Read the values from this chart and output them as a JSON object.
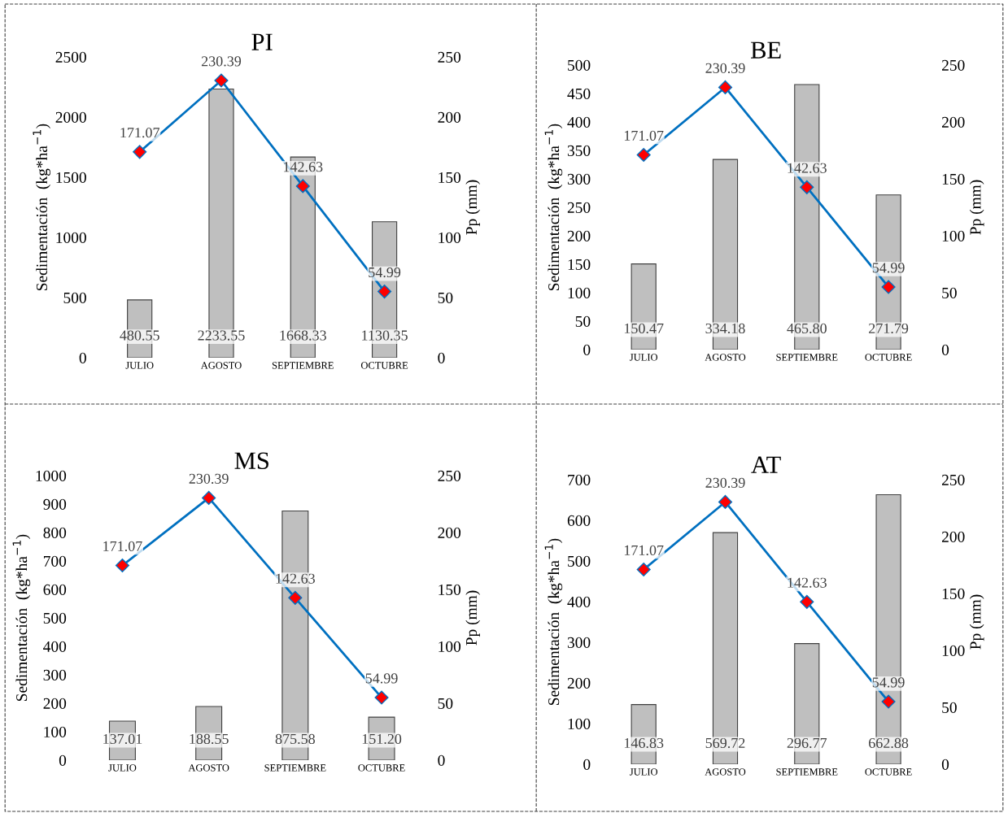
{
  "chart_data": [
    {
      "type": "bar",
      "title": "PI",
      "categories": [
        "JULIO",
        "AGOSTO",
        "SEPTIEMBRE",
        "OCTUBRE"
      ],
      "ylabel": "Sedimentación  (kg*ha$^{−1}$)",
      "y2label": "Pp (mm)",
      "ylim": [
        0,
        2500
      ],
      "yticks": [
        0,
        500,
        1000,
        1500,
        2000,
        2500
      ],
      "y2lim": [
        0,
        250
      ],
      "y2ticks": [
        0,
        50,
        100,
        150,
        200,
        250
      ],
      "grid": false,
      "series": [
        {
          "color": "#bfbfbf",
          "values": [
            480.55,
            2233.55,
            1668.33,
            1130.35
          ],
          "value_labels": [
            "480.55",
            "2233.55",
            "1668.33",
            "1130.35"
          ]
        },
        {
          "type": "line",
          "axis": "y2",
          "color": "#0070c0",
          "marker": "diamond",
          "line_style": "solid",
          "values": [
            171.07,
            230.39,
            142.63,
            54.99
          ],
          "value_labels": [
            "171.07",
            "230.39",
            "142.63",
            "54.99"
          ]
        }
      ]
    },
    {
      "type": "bar",
      "title": "BE",
      "categories": [
        "JULIO",
        "AGOSTO",
        "SEPTIEMBRE",
        "OCTUBRE"
      ],
      "ylabel": "Sedimentación  (kg*ha$^{−1}$)",
      "y2label": "Pp (mm)",
      "ylim": [
        0,
        500
      ],
      "yticks": [
        0,
        50,
        100,
        150,
        200,
        250,
        300,
        350,
        400,
        450,
        500
      ],
      "y2lim": [
        0,
        250
      ],
      "y2ticks": [
        0,
        50,
        100,
        150,
        200,
        250
      ],
      "grid": false,
      "series": [
        {
          "color": "#bfbfbf",
          "values": [
            150.47,
            334.18,
            465.8,
            271.79
          ],
          "value_labels": [
            "150.47",
            "334.18",
            "465.80",
            "271.79"
          ]
        },
        {
          "type": "line",
          "axis": "y2",
          "color": "#0070c0",
          "marker": "diamond",
          "line_style": "solid",
          "values": [
            171.07,
            230.39,
            142.63,
            54.99
          ],
          "value_labels": [
            "171.07",
            "230.39",
            "142.63",
            "54.99"
          ]
        }
      ]
    },
    {
      "type": "bar",
      "title": "MS",
      "categories": [
        "JULIO",
        "AGOSTO",
        "SEPTIEMBRE",
        "OCTUBRE"
      ],
      "ylabel": "Sedimentación  (kg*ha$^{−1}$)",
      "y2label": "Pp (mm)",
      "ylim": [
        0,
        1000
      ],
      "yticks": [
        0,
        100,
        200,
        300,
        400,
        500,
        600,
        700,
        800,
        900,
        1000
      ],
      "y2lim": [
        0,
        250
      ],
      "y2ticks": [
        0,
        50,
        100,
        150,
        200,
        250
      ],
      "grid": false,
      "series": [
        {
          "color": "#bfbfbf",
          "values": [
            137.01,
            188.55,
            875.58,
            151.2
          ],
          "value_labels": [
            "137.01",
            "188.55",
            "875.58",
            "151.20"
          ]
        },
        {
          "type": "line",
          "axis": "y2",
          "color": "#0070c0",
          "marker": "diamond",
          "line_style": "solid",
          "values": [
            171.07,
            230.39,
            142.63,
            54.99
          ],
          "value_labels": [
            "171.07",
            "230.39",
            "142.63",
            "54.99"
          ]
        }
      ]
    },
    {
      "type": "bar",
      "title": "AT",
      "categories": [
        "JULIO",
        "AGOSTO",
        "SEPTIEMBRE",
        "OCTUBRE"
      ],
      "ylabel": "Sedimentación  (kg*ha$^{−1}$)",
      "y2label": "Pp (mm)",
      "ylim": [
        0,
        700
      ],
      "yticks": [
        0,
        100,
        200,
        300,
        400,
        500,
        600,
        700
      ],
      "y2lim": [
        0,
        250
      ],
      "y2ticks": [
        0,
        50,
        100,
        150,
        200,
        250
      ],
      "grid": false,
      "series": [
        {
          "color": "#bfbfbf",
          "values": [
            146.83,
            569.72,
            296.77,
            662.88
          ],
          "value_labels": [
            "146.83",
            "569.72",
            "296.77",
            "662.88"
          ]
        },
        {
          "type": "line",
          "axis": "y2",
          "color": "#0070c0",
          "marker": "diamond",
          "line_style": "solid",
          "values": [
            171.07,
            230.39,
            142.63,
            54.99
          ],
          "value_labels": [
            "171.07",
            "230.39",
            "142.63",
            "54.99"
          ]
        }
      ]
    }
  ]
}
